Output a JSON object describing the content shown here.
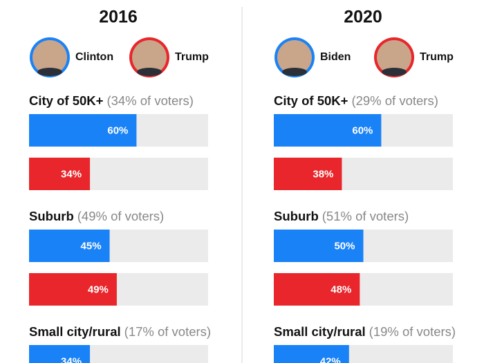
{
  "chart_data": [
    {
      "type": "bar",
      "title": "2016",
      "xlim": [
        0,
        100
      ],
      "categories": [
        "City of 50K+",
        "Suburb",
        "Small city/rural"
      ],
      "category_notes": [
        "(34% of voters)",
        "(49% of voters)",
        "(17% of voters)"
      ],
      "series": [
        {
          "name": "Clinton",
          "color": "#1a82f7",
          "values": [
            60,
            45,
            34
          ],
          "value_labels": [
            "60%",
            "45%",
            "34%"
          ]
        },
        {
          "name": "Trump",
          "color": "#e8262b",
          "values": [
            34,
            49,
            null
          ],
          "value_labels": [
            "34%",
            "49%",
            null
          ]
        }
      ]
    },
    {
      "type": "bar",
      "title": "2020",
      "xlim": [
        0,
        100
      ],
      "categories": [
        "City of 50K+",
        "Suburb",
        "Small city/rural"
      ],
      "category_notes": [
        "(29% of voters)",
        "(51% of voters)",
        "(19% of voters)"
      ],
      "series": [
        {
          "name": "Biden",
          "color": "#1a82f7",
          "values": [
            60,
            50,
            42
          ],
          "value_labels": [
            "60%",
            "50%",
            "42%"
          ]
        },
        {
          "name": "Trump",
          "color": "#e8262b",
          "values": [
            38,
            48,
            null
          ],
          "value_labels": [
            "38%",
            "48%",
            null
          ]
        }
      ]
    }
  ]
}
